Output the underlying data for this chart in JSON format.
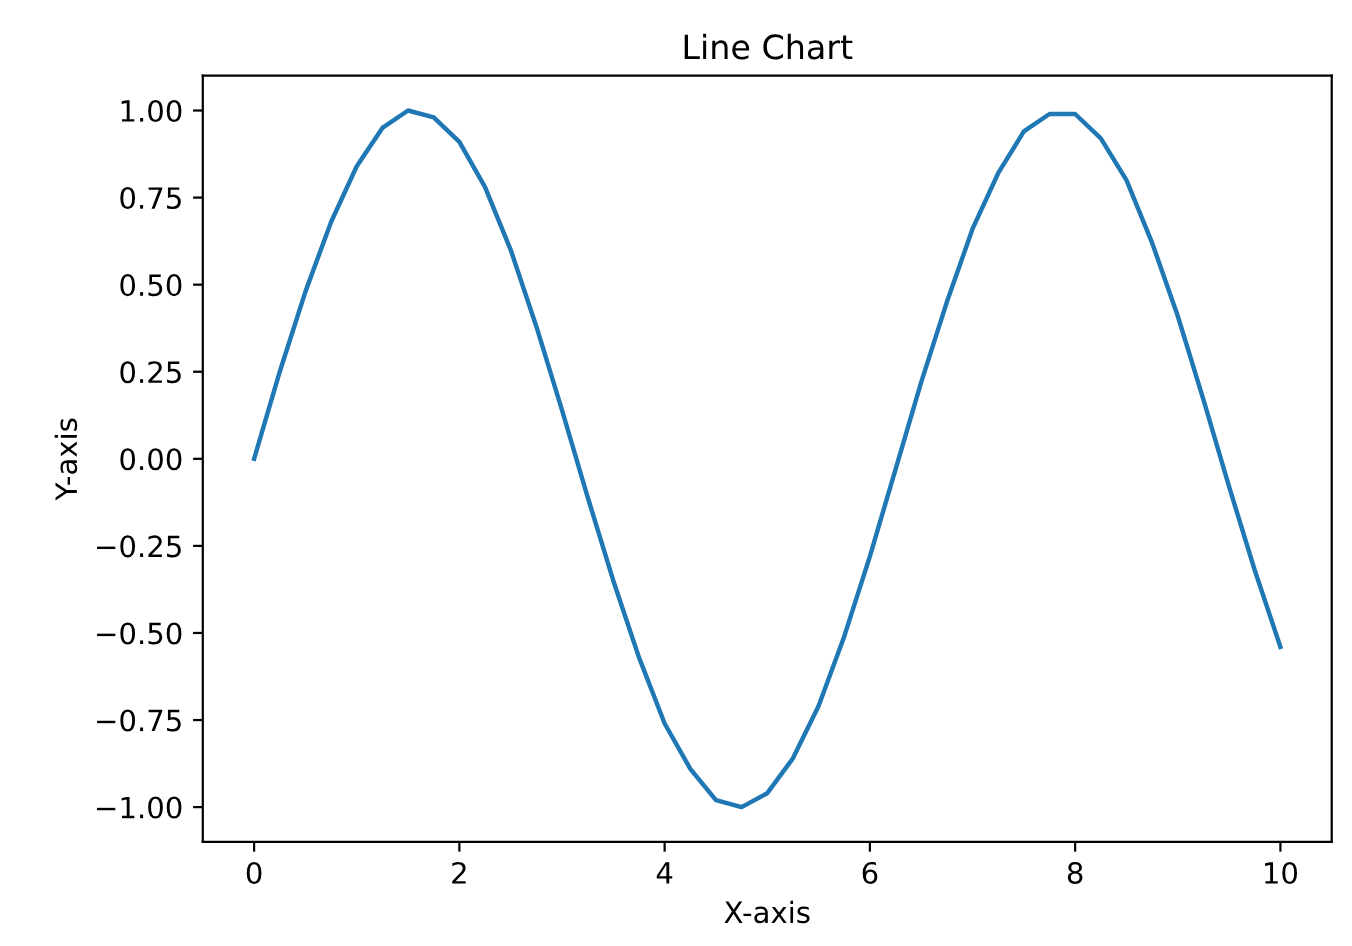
{
  "chart_data": {
    "type": "line",
    "title": "Line Chart",
    "xlabel": "X-axis",
    "ylabel": "Y-axis",
    "x": [
      0,
      0.25,
      0.5,
      0.75,
      1,
      1.25,
      1.5,
      1.75,
      2,
      2.25,
      2.5,
      2.75,
      3,
      3.25,
      3.5,
      3.75,
      4,
      4.25,
      4.5,
      4.75,
      5,
      5.25,
      5.5,
      5.75,
      6,
      6.25,
      6.5,
      6.75,
      7,
      7.25,
      7.5,
      7.75,
      8,
      8.25,
      8.5,
      8.75,
      9,
      9.25,
      9.5,
      9.75,
      10
    ],
    "series": [
      {
        "color": "#1f77b4",
        "values": [
          0,
          0.25,
          0.48,
          0.68,
          0.84,
          0.95,
          1.0,
          0.98,
          0.91,
          0.78,
          0.6,
          0.38,
          0.14,
          -0.11,
          -0.35,
          -0.57,
          -0.76,
          -0.89,
          -0.98,
          -1.0,
          -0.96,
          -0.86,
          -0.71,
          -0.51,
          -0.28,
          -0.03,
          0.22,
          0.45,
          0.66,
          0.82,
          0.94,
          0.99,
          0.99,
          0.92,
          0.8,
          0.62,
          0.41,
          0.17,
          -0.08,
          -0.32,
          -0.54
        ]
      }
    ],
    "xlim": [
      -0.5,
      10.5
    ],
    "ylim": [
      -1.1,
      1.1
    ],
    "xticks": [
      0,
      2,
      4,
      6,
      8,
      10
    ],
    "yticks": [
      {
        "value": -1,
        "label": "−1.00"
      },
      {
        "value": -0.75,
        "label": "−0.75"
      },
      {
        "value": -0.5,
        "label": "−0.50"
      },
      {
        "value": -0.25,
        "label": "−0.25"
      },
      {
        "value": 0,
        "label": "0.00"
      },
      {
        "value": 0.25,
        "label": "0.25"
      },
      {
        "value": 0.5,
        "label": "0.50"
      },
      {
        "value": 0.75,
        "label": "0.75"
      },
      {
        "value": 1,
        "label": "1.00"
      }
    ],
    "grid": false,
    "marker": "none",
    "line_style": "solid"
  }
}
